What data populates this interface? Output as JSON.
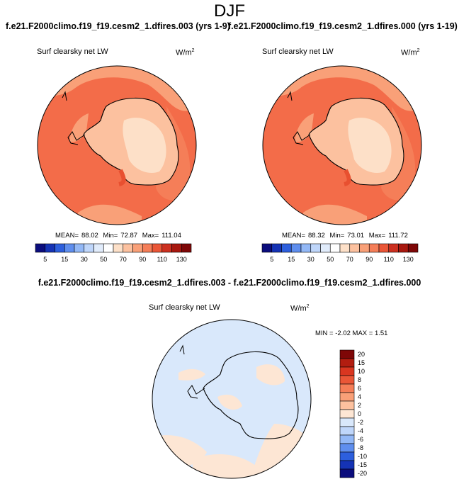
{
  "page_title": "DJF",
  "panels": {
    "left": {
      "title": "f.e21.F2000climo.f19_f19.cesm2_1.dfires.003 (yrs 1-9)",
      "variable": "Surf clearsky net LW",
      "units": "W/m",
      "units_exp": "2",
      "mean_label": "MEAN=",
      "mean": "88.02",
      "min_label": "Min=",
      "min": "72.87",
      "max_label": "Max=",
      "max": "111.04"
    },
    "right": {
      "title": "f.e21.F2000climo.f19_f19.cesm2_1.dfires.000 (yrs 1-19)",
      "variable": "Surf clearsky net LW",
      "units": "W/m",
      "units_exp": "2",
      "mean_label": "MEAN=",
      "mean": "88.32",
      "min_label": "Min=",
      "min": "73.01",
      "max_label": "Max=",
      "max": "111.72"
    },
    "diff": {
      "title": "f.e21.F2000climo.f19_f19.cesm2_1.dfires.003 - f.e21.F2000climo.f19_f19.cesm2_1.dfires.000",
      "variable": "Surf clearsky net LW",
      "units": "W/m",
      "units_exp": "2",
      "minmax_text": "MIN = -2.02 MAX = 1.51"
    }
  },
  "chart_data": [
    {
      "type": "heatmap",
      "name": "left",
      "projection": "south polar stereographic",
      "colorbar": {
        "orientation": "horizontal",
        "levels": [
          5,
          10,
          15,
          20,
          30,
          40,
          50,
          60,
          70,
          80,
          90,
          100,
          110,
          120,
          130
        ],
        "tick_labels": [
          "5",
          "15",
          "30",
          "50",
          "70",
          "90",
          "110",
          "130"
        ],
        "tick_at_levels": [
          5,
          15,
          30,
          50,
          70,
          90,
          110,
          130
        ],
        "colors": [
          "#0b0d7d",
          "#1533b5",
          "#2d5fdd",
          "#5f8eee",
          "#93b8f6",
          "#bfd6fa",
          "#e1ecfb",
          "#ffffff",
          "#fde0c8",
          "#fcc19f",
          "#f9a078",
          "#f57e58",
          "#ea5637",
          "#cc3020",
          "#a8180f",
          "#7e0707"
        ]
      },
      "stats": {
        "mean": 88.02,
        "min": 72.87,
        "max": 111.04
      }
    },
    {
      "type": "heatmap",
      "name": "right",
      "projection": "south polar stereographic",
      "colorbar": {
        "orientation": "horizontal",
        "levels": [
          5,
          10,
          15,
          20,
          30,
          40,
          50,
          60,
          70,
          80,
          90,
          100,
          110,
          120,
          130
        ],
        "tick_labels": [
          "5",
          "15",
          "30",
          "50",
          "70",
          "90",
          "110",
          "130"
        ],
        "tick_at_levels": [
          5,
          15,
          30,
          50,
          70,
          90,
          110,
          130
        ],
        "colors": [
          "#0b0d7d",
          "#1533b5",
          "#2d5fdd",
          "#5f8eee",
          "#93b8f6",
          "#bfd6fa",
          "#e1ecfb",
          "#ffffff",
          "#fde0c8",
          "#fcc19f",
          "#f9a078",
          "#f57e58",
          "#ea5637",
          "#cc3020",
          "#a8180f",
          "#7e0707"
        ]
      },
      "stats": {
        "mean": 88.32,
        "min": 73.01,
        "max": 111.72
      }
    },
    {
      "type": "heatmap",
      "name": "diff",
      "projection": "south polar stereographic",
      "colorbar": {
        "orientation": "vertical",
        "levels": [
          -20,
          -15,
          -10,
          -8,
          -6,
          -4,
          -2,
          0,
          2,
          4,
          6,
          8,
          10,
          15,
          20
        ],
        "tick_labels": [
          "20",
          "15",
          "10",
          "8",
          "6",
          "4",
          "2",
          "0",
          "-2",
          "-4",
          "-6",
          "-8",
          "-10",
          "-15",
          "-20"
        ],
        "colors": [
          "#7e0707",
          "#b21d10",
          "#d93620",
          "#ea5637",
          "#f57e58",
          "#f9a078",
          "#fcc19f",
          "#fde6d4",
          "#d9e8fb",
          "#bfd6fa",
          "#93b8f6",
          "#5f8eee",
          "#2d5fdd",
          "#1533b5",
          "#0b0d7d"
        ]
      },
      "stats": {
        "min": -2.02,
        "max": 1.51
      }
    }
  ]
}
